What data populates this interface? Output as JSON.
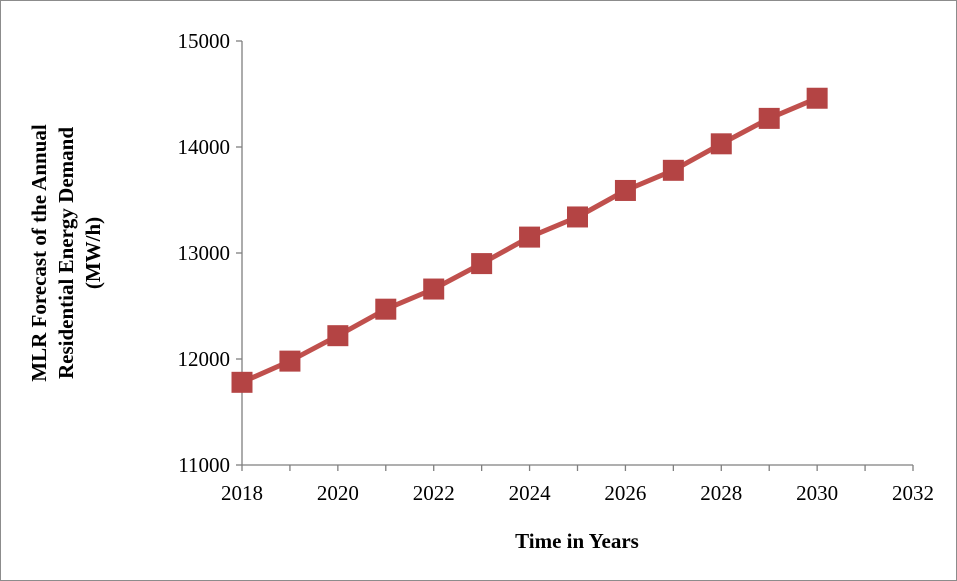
{
  "chart_data": {
    "type": "line",
    "title": "",
    "xlabel": "Time in Years",
    "ylabel_lines": [
      "MLR Forecast of the Annual",
      "Residential Energy Demand",
      "(MW/h)"
    ],
    "xlim": [
      2018,
      2032
    ],
    "ylim": [
      11000,
      15000
    ],
    "x_ticks": [
      2018,
      2020,
      2022,
      2024,
      2026,
      2028,
      2030,
      2032
    ],
    "y_ticks": [
      11000,
      12000,
      13000,
      14000,
      15000
    ],
    "x_tick_labels": [
      "2018",
      "2020",
      "2022",
      "2024",
      "2026",
      "2028",
      "2030",
      "2032"
    ],
    "y_tick_labels": [
      "11000",
      "12000",
      "13000",
      "14000",
      "15000"
    ],
    "grid": false,
    "legend": "none",
    "series": [
      {
        "color": "#c0504d",
        "marker_color": "#b44444",
        "marker": "square",
        "points": [
          {
            "x": 2018,
            "y": 11780
          },
          {
            "x": 2019,
            "y": 11980
          },
          {
            "x": 2020,
            "y": 12220
          },
          {
            "x": 2021,
            "y": 12470
          },
          {
            "x": 2022,
            "y": 12660
          },
          {
            "x": 2023,
            "y": 12900
          },
          {
            "x": 2024,
            "y": 13150
          },
          {
            "x": 2025,
            "y": 13340
          },
          {
            "x": 2026,
            "y": 13590
          },
          {
            "x": 2027,
            "y": 13780
          },
          {
            "x": 2028,
            "y": 14030
          },
          {
            "x": 2029,
            "y": 14270
          },
          {
            "x": 2030,
            "y": 14460
          }
        ]
      }
    ]
  }
}
